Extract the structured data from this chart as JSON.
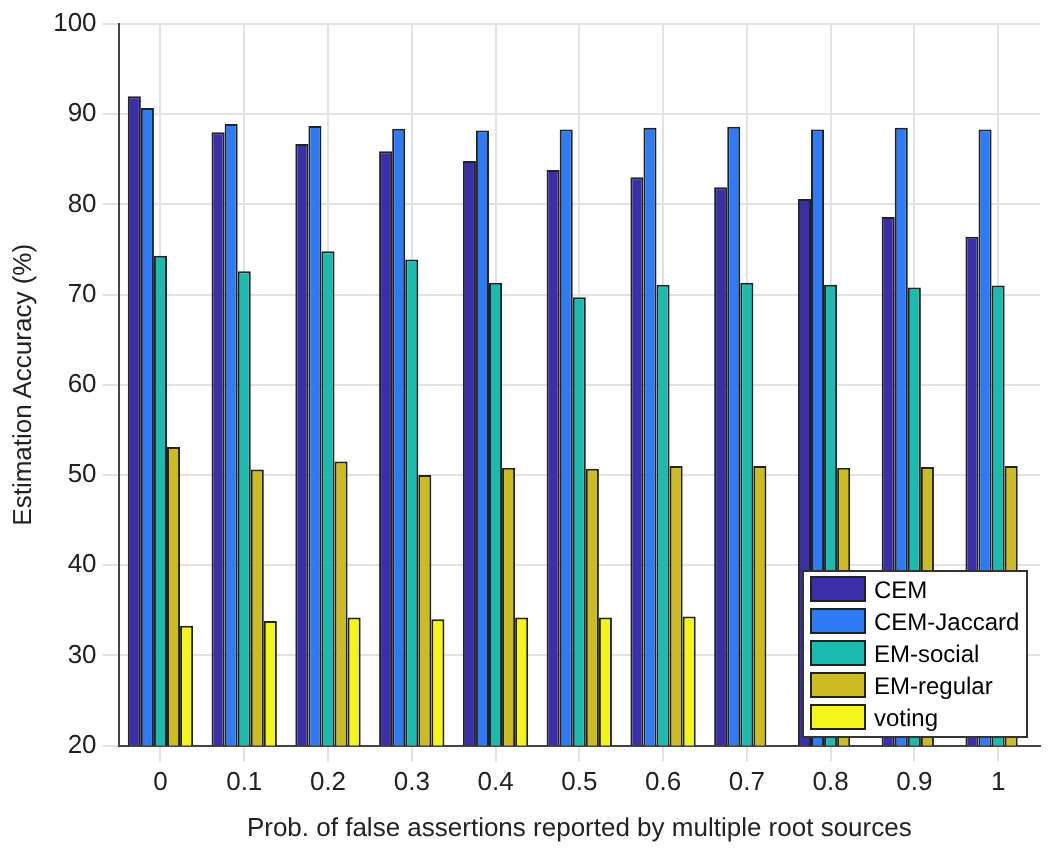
{
  "chart_data": {
    "type": "bar",
    "xlabel": "Prob. of false assertions reported by multiple root sources",
    "ylabel": "Estimation Accuracy (%)",
    "categories": [
      "0",
      "0.1",
      "0.2",
      "0.3",
      "0.4",
      "0.5",
      "0.6",
      "0.7",
      "0.8",
      "0.9",
      "1"
    ],
    "series": [
      {
        "name": "CEM",
        "color": "#3a2fa8",
        "values": [
          92,
          88,
          86.7,
          85.9,
          84.8,
          83.8,
          83,
          81.9,
          80.6,
          78.6,
          76.4
        ]
      },
      {
        "name": "CEM-Jaccard",
        "color": "#2f7bf5",
        "values": [
          90.7,
          88.9,
          88.7,
          88.4,
          88.2,
          88.3,
          88.5,
          88.6,
          88.3,
          88.5,
          88.3
        ]
      },
      {
        "name": "EM-social",
        "color": "#1bbcb0",
        "values": [
          74.3,
          72.6,
          74.8,
          73.9,
          71.3,
          69.7,
          71.1,
          71.3,
          71.1,
          70.8,
          71
        ]
      },
      {
        "name": "EM-regular",
        "color": "#cdbb22",
        "values": [
          53.1,
          50.6,
          51.5,
          50,
          50.8,
          50.7,
          51,
          51,
          50.8,
          50.9,
          51
        ]
      },
      {
        "name": "voting",
        "color": "#f6f51a",
        "values": [
          33.3,
          33.8,
          34.2,
          34,
          34.2,
          34.2,
          34.3,
          null,
          null,
          null,
          null
        ]
      }
    ],
    "ylim": [
      20,
      100
    ],
    "yticks": [
      20,
      30,
      40,
      50,
      60,
      70,
      80,
      90,
      100
    ],
    "grid": true,
    "legend": "bottom right"
  }
}
